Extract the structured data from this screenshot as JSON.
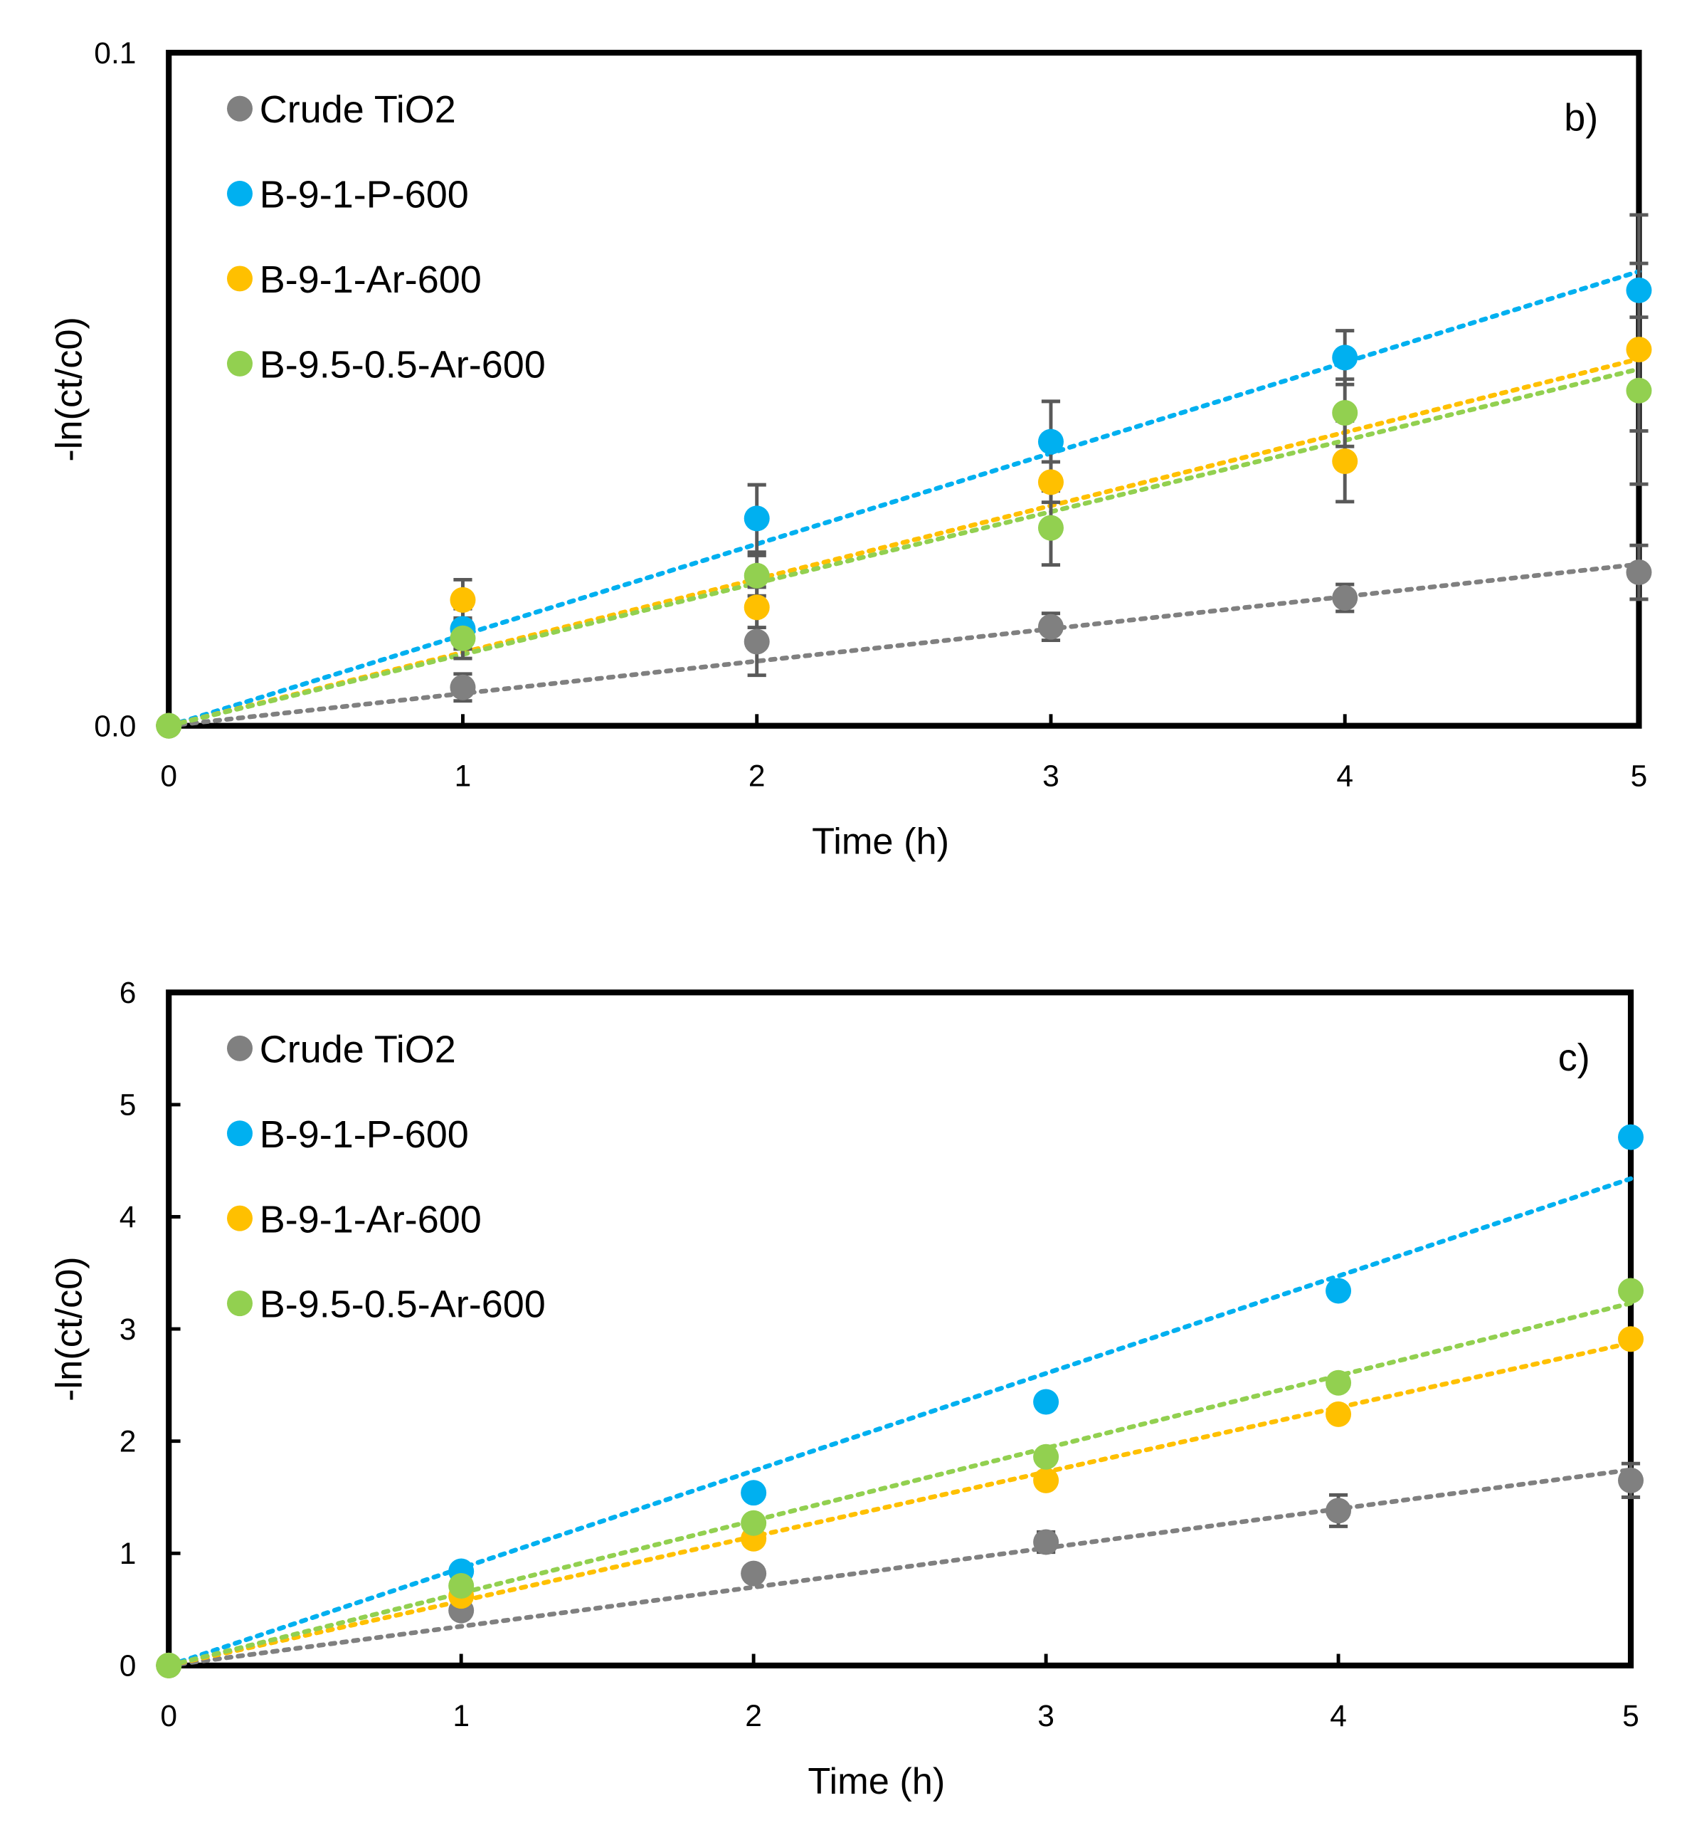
{
  "chart_data": [
    {
      "type": "scatter",
      "panel_label": "b)",
      "xlabel": "Time (h)",
      "ylabel": "-ln(ct/c0)",
      "xlim": [
        0,
        5
      ],
      "ylim": [
        0,
        0.1
      ],
      "x_ticks": [
        "0",
        "1",
        "2",
        "3",
        "4",
        "5"
      ],
      "y_ticks": [
        "0.0",
        "0.1"
      ],
      "legend_position": "top-left",
      "x": [
        0,
        1,
        2,
        3,
        4,
        5
      ],
      "series": [
        {
          "name": "Crude TiO2",
          "color": "#808080",
          "values": [
            0,
            0.0057,
            0.0125,
            0.0147,
            0.019,
            0.0228
          ],
          "errors": [
            0,
            0.002,
            0.005,
            0.002,
            0.002,
            0.004
          ],
          "trend_slope": 0.0048
        },
        {
          "name": "B-9-1-P-600",
          "color": "#00B0F0",
          "values": [
            0,
            0.0144,
            0.0308,
            0.0422,
            0.0547,
            0.0647
          ],
          "errors": [
            0,
            0.003,
            0.005,
            0.006,
            0.004,
            0.004
          ],
          "trend_slope": 0.0135
        },
        {
          "name": "B-9-1-Ar-600",
          "color": "#FFC000",
          "values": [
            0,
            0.0187,
            0.0176,
            0.0362,
            0.0393,
            0.0559
          ],
          "errors": [
            0,
            0.003,
            0.003,
            0.003,
            0.006,
            0.02
          ],
          "trend_slope": 0.0109
        },
        {
          "name": "B-9.5-0.5-Ar-600",
          "color": "#92D050",
          "values": [
            0,
            0.013,
            0.0223,
            0.0294,
            0.0465,
            0.0498
          ],
          "errors": [
            0,
            0.003,
            0.003,
            0.0055,
            0.005,
            0.006
          ],
          "trend_slope": 0.0106
        }
      ]
    },
    {
      "type": "scatter",
      "panel_label": "c)",
      "xlabel": "Time (h)",
      "ylabel": "-ln(ct/c0)",
      "xlim": [
        0,
        5
      ],
      "ylim": [
        0,
        6
      ],
      "x_ticks": [
        "0",
        "1",
        "2",
        "3",
        "4",
        "5"
      ],
      "y_ticks": [
        "0",
        "1",
        "2",
        "3",
        "4",
        "5",
        "6"
      ],
      "legend_position": "top-left",
      "x": [
        0,
        1,
        2,
        3,
        4,
        5
      ],
      "series": [
        {
          "name": "Crude TiO2",
          "color": "#808080",
          "values": [
            0,
            0.49,
            0.82,
            1.1,
            1.38,
            1.65
          ],
          "errors": [
            0,
            0.05,
            0.06,
            0.09,
            0.14,
            0.15
          ],
          "trend_slope": 0.349
        },
        {
          "name": "B-9-1-P-600",
          "color": "#00B0F0",
          "values": [
            0,
            0.84,
            1.54,
            2.35,
            3.34,
            4.71
          ],
          "errors": [
            0,
            0.03,
            0.03,
            0.03,
            0.03,
            0.03
          ],
          "trend_slope": 0.868
        },
        {
          "name": "B-9-1-Ar-600",
          "color": "#FFC000",
          "values": [
            0,
            0.62,
            1.13,
            1.65,
            2.24,
            2.91
          ],
          "errors": [
            0,
            0.03,
            0.03,
            0.03,
            0.03,
            0.03
          ],
          "trend_slope": 0.575
        },
        {
          "name": "B-9.5-0.5-Ar-600",
          "color": "#92D050",
          "values": [
            0,
            0.71,
            1.27,
            1.86,
            2.52,
            3.34
          ],
          "errors": [
            0,
            0.03,
            0.03,
            0.03,
            0.03,
            0.03
          ],
          "trend_slope": 0.646
        }
      ]
    }
  ]
}
